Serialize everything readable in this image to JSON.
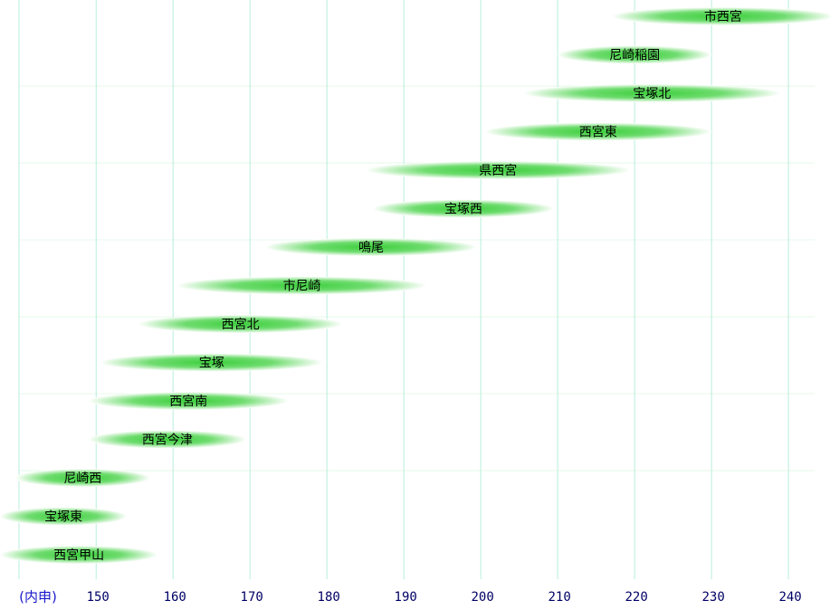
{
  "chart_data": {
    "type": "range",
    "x_label": "(内申)",
    "categories": [
      "市西宮",
      "尼崎稲園",
      "宝塚北",
      "西宮東",
      "県西宮",
      "宝塚西",
      "鳴尾",
      "市尼崎",
      "西宮北",
      "宝塚",
      "西宮南",
      "西宮今津",
      "尼崎西",
      "宝塚東",
      "西宮甲山"
    ],
    "low": [
      217,
      210,
      205.5,
      200.5,
      185,
      186,
      172,
      160.5,
      155.5,
      150.5,
      149,
      149,
      139.5,
      137.5,
      137.5
    ],
    "high": [
      246,
      230,
      239,
      230,
      219.5,
      209.5,
      199.5,
      193,
      182,
      179.5,
      175,
      169.5,
      157,
      154,
      158
    ],
    "color": "#3ccf3c",
    "xlim": [
      137.5,
      245.4
    ],
    "xticks": [
      150,
      160,
      170,
      180,
      190,
      200,
      210,
      220,
      230,
      240
    ],
    "grid": true
  }
}
